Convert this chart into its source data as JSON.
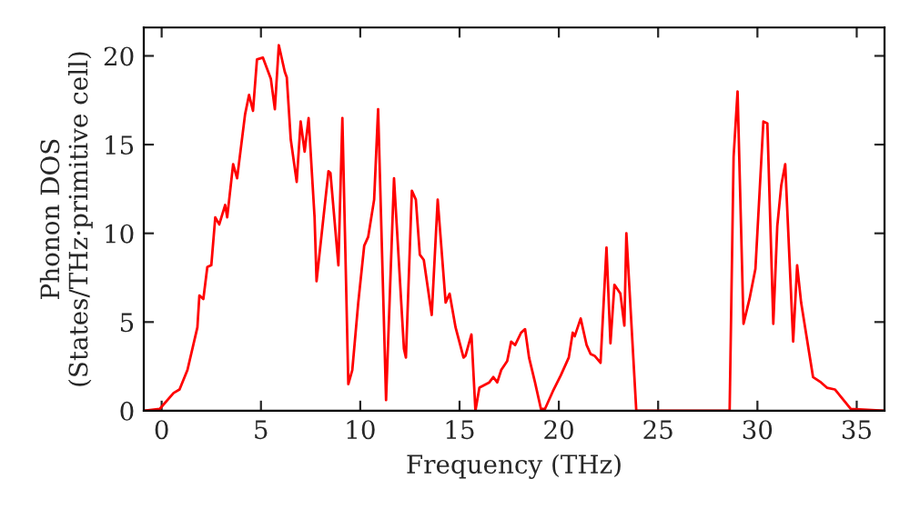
{
  "chart_data": {
    "type": "line",
    "xlabel": "Frequency (THz)",
    "ylabel": "Phonon DOS\n(States/THz·primitive cell)",
    "xlim": [
      -0.9,
      36.4
    ],
    "ylim": [
      0,
      21.6
    ],
    "xticks": [
      0,
      5,
      10,
      15,
      20,
      25,
      30,
      35
    ],
    "yticks": [
      0,
      5,
      10,
      15,
      20
    ],
    "grid": false,
    "legend": false,
    "marker": "none",
    "line_style": "solid",
    "series": [
      {
        "color": "#ff0000",
        "x": [
          -0.9,
          -0.1,
          0.6,
          0.9,
          1.3,
          1.8,
          1.9,
          2.1,
          2.3,
          2.5,
          2.7,
          2.9,
          3.2,
          3.3,
          3.6,
          3.8,
          4.2,
          4.4,
          4.6,
          4.8,
          5.1,
          5.5,
          5.7,
          5.9,
          6.2,
          6.3,
          6.5,
          6.8,
          7.0,
          7.2,
          7.4,
          7.7,
          7.8,
          8.4,
          8.5,
          8.9,
          9.1,
          9.4,
          9.6,
          9.9,
          10.2,
          10.4,
          10.7,
          10.9,
          11.3,
          11.7,
          12.2,
          12.3,
          12.6,
          12.8,
          13.0,
          13.2,
          13.6,
          13.9,
          14.3,
          14.5,
          14.8,
          15.2,
          15.3,
          15.6,
          15.8,
          16.0,
          16.5,
          16.7,
          16.9,
          17.1,
          17.4,
          17.6,
          17.8,
          18.1,
          18.3,
          18.5,
          18.8,
          19.1,
          19.3,
          19.7,
          20.1,
          20.5,
          20.7,
          20.8,
          21.1,
          21.4,
          21.6,
          21.8,
          22.1,
          22.4,
          22.6,
          22.8,
          23.1,
          23.3,
          23.4,
          23.9,
          28.6,
          28.8,
          29.0,
          29.3,
          29.6,
          29.9,
          30.3,
          30.5,
          30.8,
          31.0,
          31.2,
          31.4,
          31.8,
          32.0,
          32.2,
          32.8,
          33.2,
          33.5,
          33.9,
          34.7,
          36.4
        ],
        "values": [
          0,
          0.1,
          1.0,
          1.2,
          2.3,
          4.7,
          6.5,
          6.3,
          8.1,
          8.2,
          10.9,
          10.5,
          11.6,
          10.9,
          13.9,
          13.1,
          16.7,
          17.8,
          16.9,
          19.8,
          19.9,
          18.7,
          17.0,
          20.6,
          19.1,
          18.8,
          15.3,
          12.9,
          16.3,
          14.6,
          16.5,
          10.9,
          7.3,
          13.5,
          13.4,
          8.2,
          16.5,
          1.5,
          2.3,
          6.1,
          9.3,
          9.8,
          11.9,
          17.0,
          0.6,
          13.1,
          3.5,
          3.0,
          12.4,
          11.9,
          8.8,
          8.5,
          5.4,
          11.9,
          6.1,
          6.6,
          4.7,
          3.0,
          3.1,
          4.3,
          0,
          1.3,
          1.6,
          1.9,
          1.6,
          2.3,
          2.8,
          3.9,
          3.7,
          4.4,
          4.6,
          3.0,
          1.6,
          0.1,
          0.1,
          1.1,
          2.0,
          3.0,
          4.4,
          4.2,
          5.2,
          3.7,
          3.2,
          3.1,
          2.7,
          9.2,
          3.8,
          7.1,
          6.6,
          4.8,
          10.0,
          0,
          0,
          14.3,
          18.0,
          4.9,
          6.3,
          8.0,
          16.3,
          16.2,
          4.9,
          10.4,
          12.7,
          13.9,
          3.9,
          8.2,
          6.1,
          1.9,
          1.6,
          1.3,
          1.2,
          0.1,
          0
        ]
      }
    ]
  }
}
